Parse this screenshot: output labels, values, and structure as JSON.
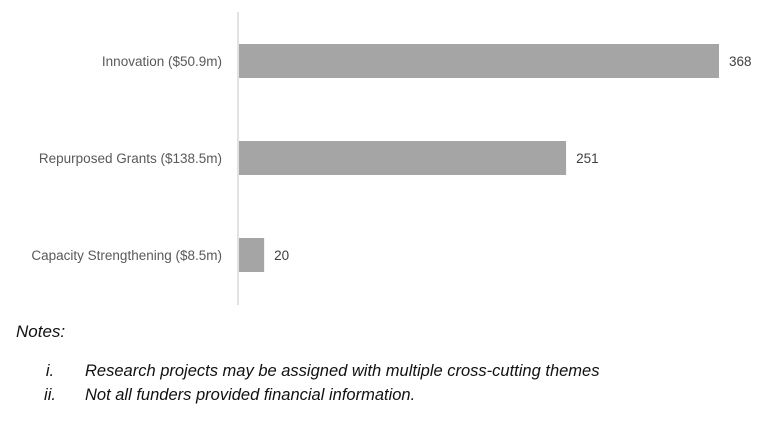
{
  "chart_data": {
    "type": "bar",
    "orientation": "horizontal",
    "categories": [
      "Innovation ($50.9m)",
      "Repurposed Grants ($138.5m)",
      "Capacity Strengthening ($8.5m)"
    ],
    "values": [
      368,
      251,
      20
    ],
    "data_labels": [
      "368",
      "251",
      "20"
    ],
    "xlim": [
      0,
      368
    ],
    "grid": false,
    "legend": "none",
    "bar_color": "#a5a5a5",
    "axis_color": "#d9d9d9",
    "label_color": "#595959"
  },
  "notes": {
    "title": "Notes:",
    "items": [
      {
        "num": "i.",
        "text": "Research projects may be assigned with multiple cross-cutting themes"
      },
      {
        "num": "ii.",
        "text": "Not all funders provided financial information."
      }
    ]
  }
}
